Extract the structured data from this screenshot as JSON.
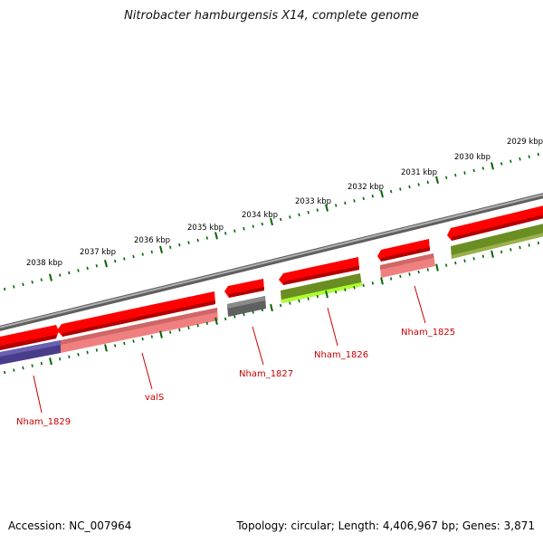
{
  "title": "Nitrobacter hamburgensis X14, complete genome",
  "footer": {
    "accession": "Accession: NC_007964",
    "summary": "Topology: circular; Length: 4,406,967 bp; Genes: 3,871"
  },
  "colors": {
    "backbone": "#888888",
    "tick": "#006600",
    "label": "#cc0000",
    "gene_red": "#ff0000",
    "rna_pink": "#f08080",
    "dark_gray": "#606060",
    "olive": "#6b8e23",
    "lime": "#adff2f",
    "purple": "#483d8b"
  },
  "scale_labels": [
    "2029 kbp",
    "2030 kbp",
    "2031 kbp",
    "2032 kbp",
    "2033 kbp",
    "2034 kbp",
    "2035 kbp",
    "2036 kbp",
    "2037 kbp",
    "2038 kbp"
  ],
  "gene_labels": [
    "Nham_1825",
    "Nham_1826",
    "Nham_1827",
    "valS",
    "Nham_1829"
  ]
}
